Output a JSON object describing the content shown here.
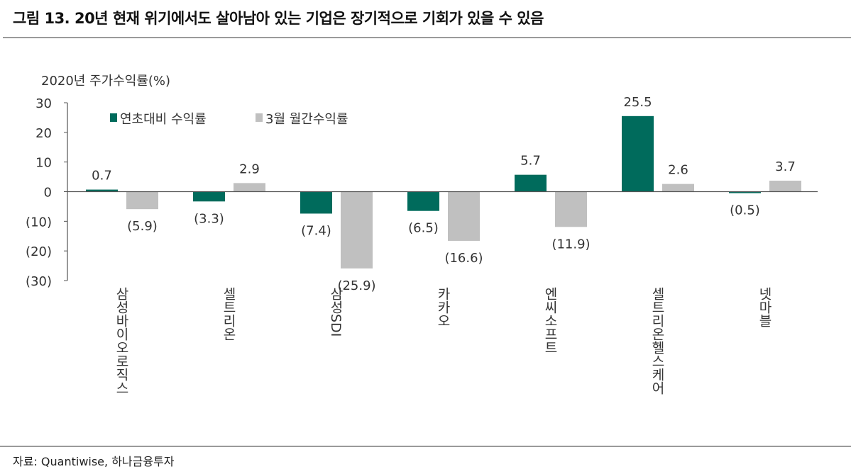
{
  "title": "그림 13. 20년 현재 위기에서도 살아남아 있는 기업은 장기적으로 기회가 있을 수 있음",
  "source": "자료: Quantiwise, 하나금융투자",
  "chart_data": {
    "type": "bar",
    "ylabel": "2020년 주가수익률(%)",
    "ylim": [
      -30,
      30
    ],
    "yticks": [
      30,
      20,
      10,
      0,
      -10,
      -20,
      -30
    ],
    "ytick_labels": [
      "30",
      "20",
      "10",
      "0",
      "(10)",
      "(20)",
      "(30)"
    ],
    "categories": [
      "삼성바이오로직스",
      "셀트리온",
      "삼성SDI",
      "카카오",
      "엔씨소프트",
      "셀트리온헬스케어",
      "넷마블"
    ],
    "series": [
      {
        "name": "연초대비 수익률",
        "color": "#006b5c",
        "values": [
          0.7,
          -3.3,
          -7.4,
          -6.5,
          5.7,
          25.5,
          -0.5
        ],
        "labels": [
          "0.7",
          "(3.3)",
          "(7.4)",
          "(6.5)",
          "5.7",
          "25.5",
          "(0.5)"
        ]
      },
      {
        "name": "3월 월간수익률",
        "color": "#c0c0c0",
        "values": [
          -5.9,
          2.9,
          -25.9,
          -16.6,
          -11.9,
          2.6,
          3.7
        ],
        "labels": [
          "(5.9)",
          "2.9",
          "(25.9)",
          "(16.6)",
          "(11.9)",
          "2.6",
          "3.7"
        ]
      }
    ],
    "legend": "top-left",
    "grid": false
  }
}
